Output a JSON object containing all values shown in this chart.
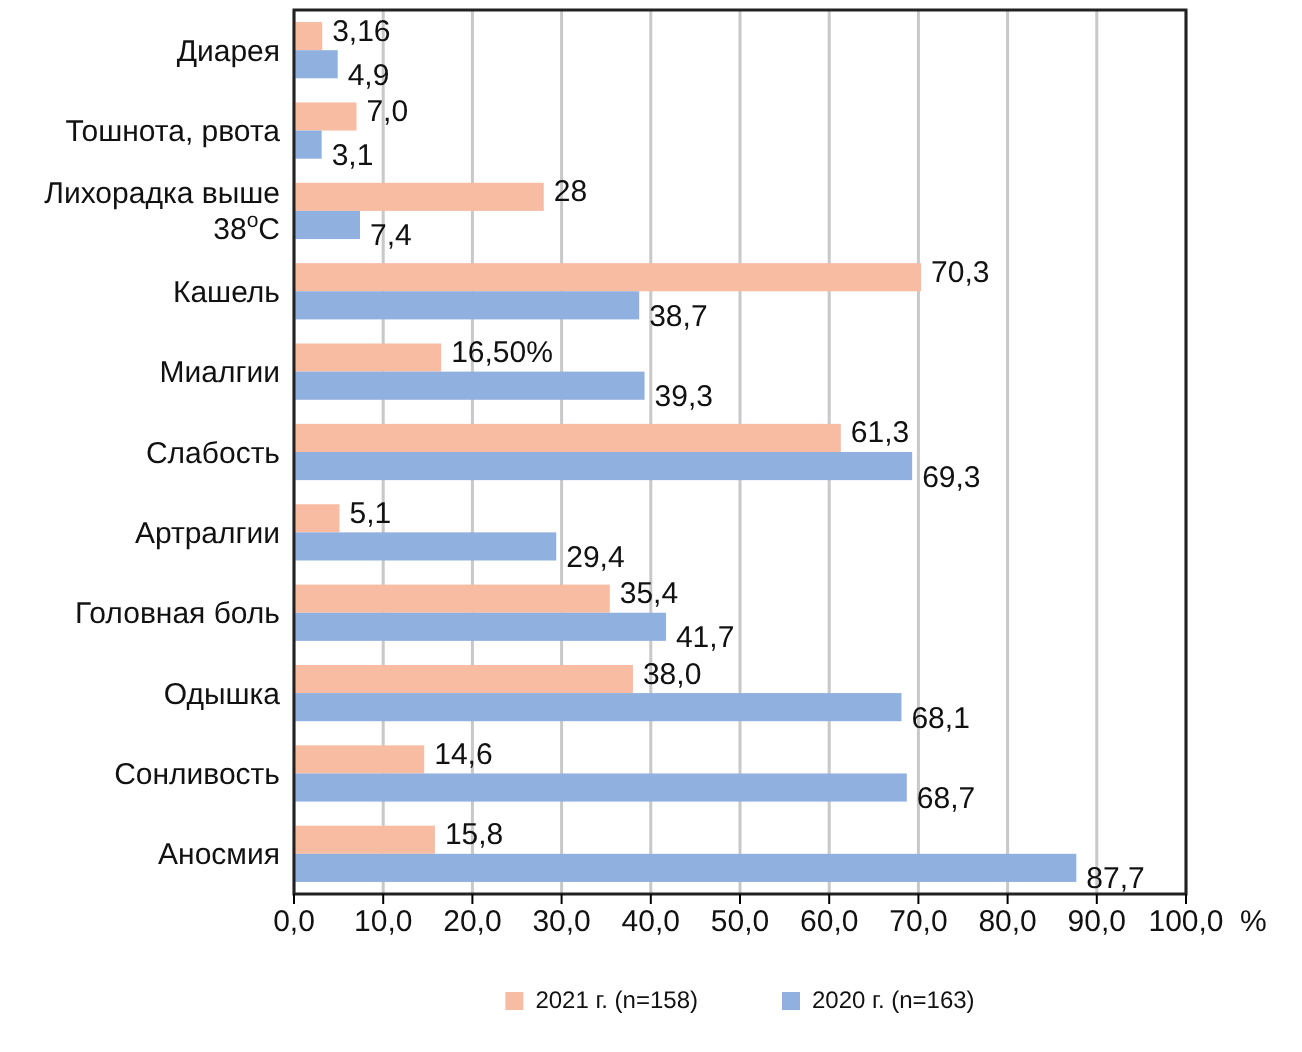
{
  "chart_data": {
    "type": "bar",
    "orientation": "horizontal",
    "categories": [
      "Диарея",
      "Тошнота, рвота",
      "Лихорадка выше 38$^{о}$С",
      "Кашель",
      "Миалгии",
      "Слабость",
      "Артралгии",
      "Головная боль",
      "Одышка",
      "Сонливость",
      "Аносмия"
    ],
    "series": [
      {
        "name": "2021 г. (n=158)",
        "color": "#f8bca3",
        "values": [
          3.16,
          7.0,
          28,
          70.3,
          16.5,
          61.3,
          5.1,
          35.4,
          38.0,
          14.6,
          15.8
        ],
        "value_labels": [
          "3,16",
          "7,0",
          "28",
          "70,3",
          "16,50%",
          "61,3",
          "5,1",
          "35,4",
          "38,0",
          "14,6",
          "15,8"
        ]
      },
      {
        "name": "2020 г. (n=163)",
        "color": "#90b0df",
        "values": [
          4.9,
          3.1,
          7.4,
          38.7,
          39.3,
          69.3,
          29.4,
          41.7,
          68.1,
          68.7,
          87.7
        ],
        "value_labels": [
          "4,9",
          "3,1",
          "7,4",
          "38,7",
          "39,3",
          "69,3",
          "29,4",
          "41,7",
          "68,1",
          "68,7",
          "87,7"
        ]
      }
    ],
    "xlim": [
      0,
      100
    ],
    "xticks": [
      {
        "value": 0,
        "label": "0,0"
      },
      {
        "value": 10,
        "label": "10,0"
      },
      {
        "value": 20,
        "label": "20,0"
      },
      {
        "value": 30,
        "label": "30,0"
      },
      {
        "value": 40,
        "label": "40,0"
      },
      {
        "value": 50,
        "label": "50,0"
      },
      {
        "value": 60,
        "label": "60,0"
      },
      {
        "value": 70,
        "label": "70,0"
      },
      {
        "value": 80,
        "label": "80,0"
      },
      {
        "value": 90,
        "label": "90,0"
      },
      {
        "value": 100,
        "label": "100,0"
      }
    ],
    "xlabel": "%",
    "grid": "x",
    "legend": "bottom"
  }
}
